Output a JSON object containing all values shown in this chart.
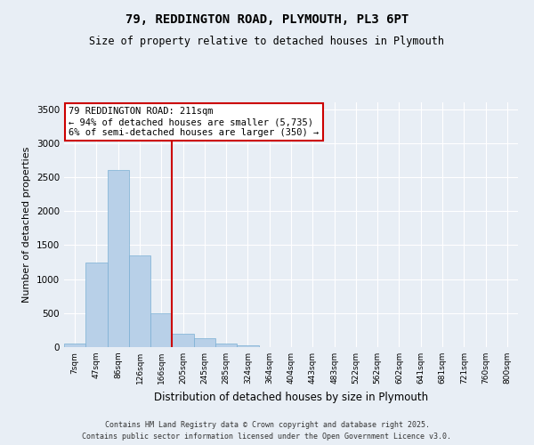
{
  "title_line1": "79, REDDINGTON ROAD, PLYMOUTH, PL3 6PT",
  "title_line2": "Size of property relative to detached houses in Plymouth",
  "xlabel": "Distribution of detached houses by size in Plymouth",
  "ylabel": "Number of detached properties",
  "categories": [
    "7sqm",
    "47sqm",
    "86sqm",
    "126sqm",
    "166sqm",
    "205sqm",
    "245sqm",
    "285sqm",
    "324sqm",
    "364sqm",
    "404sqm",
    "443sqm",
    "483sqm",
    "522sqm",
    "562sqm",
    "602sqm",
    "641sqm",
    "681sqm",
    "721sqm",
    "760sqm",
    "800sqm"
  ],
  "values": [
    50,
    1250,
    2600,
    1350,
    500,
    190,
    130,
    50,
    20,
    0,
    0,
    0,
    0,
    0,
    0,
    0,
    0,
    0,
    0,
    0,
    0
  ],
  "bar_color": "#b8d0e8",
  "bar_edge_color": "#7aafd4",
  "vline_color": "#cc0000",
  "annotation_box_text": "79 REDDINGTON ROAD: 211sqm\n← 94% of detached houses are smaller (5,735)\n6% of semi-detached houses are larger (350) →",
  "annotation_box_color": "#cc0000",
  "annotation_box_bg": "#ffffff",
  "ylim": [
    0,
    3600
  ],
  "yticks": [
    0,
    500,
    1000,
    1500,
    2000,
    2500,
    3000,
    3500
  ],
  "bg_color": "#e8eef5",
  "plot_bg_color": "#e8eef5",
  "grid_color": "#ffffff",
  "footer_line1": "Contains HM Land Registry data © Crown copyright and database right 2025.",
  "footer_line2": "Contains public sector information licensed under the Open Government Licence v3.0."
}
